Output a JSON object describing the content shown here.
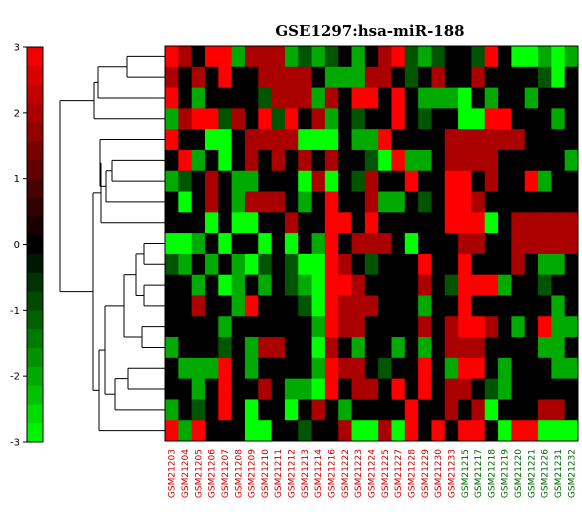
{
  "chart_data": {
    "type": "heatmap",
    "title": "GSE1297:hsa-miR-188",
    "color_scale": {
      "min": -3,
      "max": 3,
      "ticks": [
        "3",
        "2",
        "1",
        "0",
        "-1",
        "-2",
        "-3"
      ],
      "low_color": "#00ff00",
      "mid_color": "#000000",
      "high_color": "#ff0000"
    },
    "samples": [
      {
        "name": "GSM21203",
        "group_color": "#cc0000"
      },
      {
        "name": "GSM21204",
        "group_color": "#cc0000"
      },
      {
        "name": "GSM21205",
        "group_color": "#cc0000"
      },
      {
        "name": "GSM21206",
        "group_color": "#cc0000"
      },
      {
        "name": "GSM21207",
        "group_color": "#cc0000"
      },
      {
        "name": "GSM21208",
        "group_color": "#cc0000"
      },
      {
        "name": "GSM21209",
        "group_color": "#cc0000"
      },
      {
        "name": "GSM21210",
        "group_color": "#cc0000"
      },
      {
        "name": "GSM21211",
        "group_color": "#cc0000"
      },
      {
        "name": "GSM21212",
        "group_color": "#cc0000"
      },
      {
        "name": "GSM21213",
        "group_color": "#cc0000"
      },
      {
        "name": "GSM21214",
        "group_color": "#cc0000"
      },
      {
        "name": "GSM21216",
        "group_color": "#cc0000"
      },
      {
        "name": "GSM21222",
        "group_color": "#cc0000"
      },
      {
        "name": "GSM21223",
        "group_color": "#cc0000"
      },
      {
        "name": "GSM21224",
        "group_color": "#cc0000"
      },
      {
        "name": "GSM21225",
        "group_color": "#cc0000"
      },
      {
        "name": "GSM21227",
        "group_color": "#cc0000"
      },
      {
        "name": "GSM21228",
        "group_color": "#cc0000"
      },
      {
        "name": "GSM21229",
        "group_color": "#cc0000"
      },
      {
        "name": "GSM21230",
        "group_color": "#cc0000"
      },
      {
        "name": "GSM21233",
        "group_color": "#cc0000"
      },
      {
        "name": "GSM21215",
        "group_color": "#006600"
      },
      {
        "name": "GSM21217",
        "group_color": "#006600"
      },
      {
        "name": "GSM21218",
        "group_color": "#006600"
      },
      {
        "name": "GSM21219",
        "group_color": "#006600"
      },
      {
        "name": "GSM21220",
        "group_color": "#006600"
      },
      {
        "name": "GSM21221",
        "group_color": "#006600"
      },
      {
        "name": "GSM21226",
        "group_color": "#006600"
      },
      {
        "name": "GSM21231",
        "group_color": "#006600"
      },
      {
        "name": "GSM21232",
        "group_color": "#006600"
      }
    ],
    "values": [
      [
        3,
        2,
        0,
        3,
        3,
        -2,
        2,
        2,
        2,
        -2,
        -1,
        -2,
        -1,
        0,
        -2,
        0,
        2,
        3,
        -1,
        -2,
        -1,
        0,
        0,
        -1,
        3,
        0,
        -3,
        -3,
        -2,
        -3,
        -2
      ],
      [
        2,
        0,
        2,
        0,
        3,
        0,
        0,
        2,
        2,
        2,
        2,
        0,
        -2,
        -2,
        -2,
        2,
        2,
        0,
        -1,
        0,
        2,
        0,
        0,
        2,
        0,
        0,
        0,
        0,
        -1,
        -3,
        0
      ],
      [
        3,
        0,
        -2,
        0,
        0,
        0,
        0,
        -1,
        2,
        2,
        2,
        -2,
        2,
        0,
        3,
        3,
        0,
        3,
        0,
        -2,
        -2,
        -2,
        -3,
        0,
        -2,
        0,
        0,
        -2,
        0,
        0,
        0
      ],
      [
        -2,
        2,
        3,
        3,
        -1,
        2,
        0,
        3,
        -1,
        3,
        0,
        2,
        -2,
        0,
        -1,
        0,
        0,
        3,
        0,
        -1,
        0,
        0,
        -3,
        -3,
        3,
        3,
        0,
        0,
        0,
        -2,
        0
      ],
      [
        3,
        0,
        0,
        -3,
        -3,
        0,
        2,
        2,
        2,
        2,
        -3,
        -3,
        -3,
        0,
        -2,
        -2,
        3,
        0,
        0,
        0,
        0,
        2,
        2,
        2,
        2,
        2,
        2,
        0,
        0,
        0,
        0
      ],
      [
        0,
        3,
        -2,
        0,
        -3,
        0,
        2,
        0,
        2,
        0,
        2,
        0,
        2,
        0,
        0,
        -1,
        -3,
        3,
        -2,
        -2,
        0,
        2,
        2,
        2,
        2,
        0,
        0,
        0,
        0,
        0,
        -2
      ],
      [
        -2,
        -1,
        0,
        2,
        0,
        -2,
        -2,
        0,
        0,
        0,
        -3,
        2,
        -3,
        0,
        -1,
        2,
        0,
        0,
        3,
        0,
        0,
        3,
        3,
        0,
        2,
        0,
        0,
        3,
        -2,
        0,
        0
      ],
      [
        0,
        -3,
        0,
        2,
        0,
        -2,
        2,
        2,
        2,
        0,
        -2,
        0,
        3,
        0,
        0,
        2,
        -2,
        -2,
        0,
        -1,
        0,
        3,
        3,
        2,
        0,
        0,
        0,
        0,
        0,
        0,
        0
      ],
      [
        0,
        0,
        0,
        -3,
        0,
        -3,
        -3,
        0,
        0,
        2,
        0,
        0,
        3,
        3,
        0,
        3,
        0,
        0,
        0,
        0,
        0,
        3,
        3,
        3,
        -3,
        0,
        2,
        2,
        2,
        2,
        2
      ],
      [
        -3,
        -3,
        -2,
        0,
        -3,
        0,
        0,
        -3,
        0,
        -3,
        0,
        -2,
        3,
        0,
        2,
        2,
        2,
        0,
        -3,
        0,
        0,
        0,
        2,
        2,
        0,
        0,
        2,
        2,
        2,
        2,
        2
      ],
      [
        -1,
        -2,
        0,
        -2,
        0,
        -2,
        -3,
        -1,
        0,
        -1,
        -3,
        -3,
        3,
        2,
        0,
        -1,
        0,
        0,
        0,
        3,
        0,
        0,
        3,
        0,
        0,
        0,
        2,
        0,
        -2,
        -2,
        0
      ],
      [
        0,
        0,
        -2,
        0,
        -3,
        -2,
        0,
        -2,
        0,
        -1,
        -2,
        -3,
        3,
        3,
        2,
        0,
        0,
        0,
        0,
        2,
        0,
        -1,
        3,
        3,
        3,
        -2,
        0,
        0,
        -1,
        0,
        0
      ],
      [
        0,
        0,
        2,
        0,
        0,
        -2,
        3,
        0,
        0,
        0,
        -1,
        -3,
        3,
        2,
        2,
        2,
        0,
        0,
        0,
        -2,
        0,
        0,
        3,
        0,
        0,
        0,
        0,
        0,
        0,
        -2,
        0
      ],
      [
        0,
        0,
        0,
        0,
        -2,
        0,
        0,
        0,
        0,
        0,
        0,
        -2,
        3,
        2,
        2,
        0,
        0,
        0,
        0,
        2,
        0,
        2,
        3,
        3,
        2,
        0,
        -2,
        0,
        3,
        -2,
        -2
      ],
      [
        -2,
        0,
        0,
        0,
        -1,
        0,
        -2,
        2,
        2,
        0,
        0,
        -3,
        2,
        0,
        -2,
        0,
        0,
        -2,
        0,
        -2,
        0,
        2,
        2,
        2,
        0,
        0,
        0,
        0,
        -2,
        -2,
        0
      ],
      [
        0,
        -2,
        -2,
        -2,
        3,
        0,
        -2,
        0,
        0,
        0,
        0,
        -2,
        3,
        2,
        2,
        0,
        -1,
        0,
        0,
        3,
        0,
        -2,
        3,
        3,
        0,
        -2,
        0,
        0,
        0,
        -2,
        -2
      ],
      [
        0,
        0,
        -2,
        0,
        3,
        0,
        0,
        2,
        0,
        -2,
        -2,
        -3,
        3,
        0,
        2,
        2,
        0,
        3,
        0,
        3,
        0,
        2,
        2,
        0,
        -1,
        -2,
        0,
        0,
        0,
        0,
        0
      ],
      [
        -2,
        0,
        -1,
        0,
        3,
        0,
        -3,
        0,
        0,
        -3,
        0,
        2,
        0,
        -2,
        0,
        0,
        0,
        0,
        3,
        0,
        0,
        2,
        0,
        2,
        -3,
        0,
        0,
        0,
        2,
        2,
        0
      ],
      [
        3,
        -2,
        3,
        0,
        0,
        0,
        -3,
        -3,
        0,
        0,
        -1,
        0,
        0,
        2,
        -3,
        -3,
        2,
        -3,
        3,
        0,
        3,
        0,
        3,
        3,
        0,
        -3,
        3,
        3,
        -3,
        -3,
        -3
      ]
    ]
  }
}
